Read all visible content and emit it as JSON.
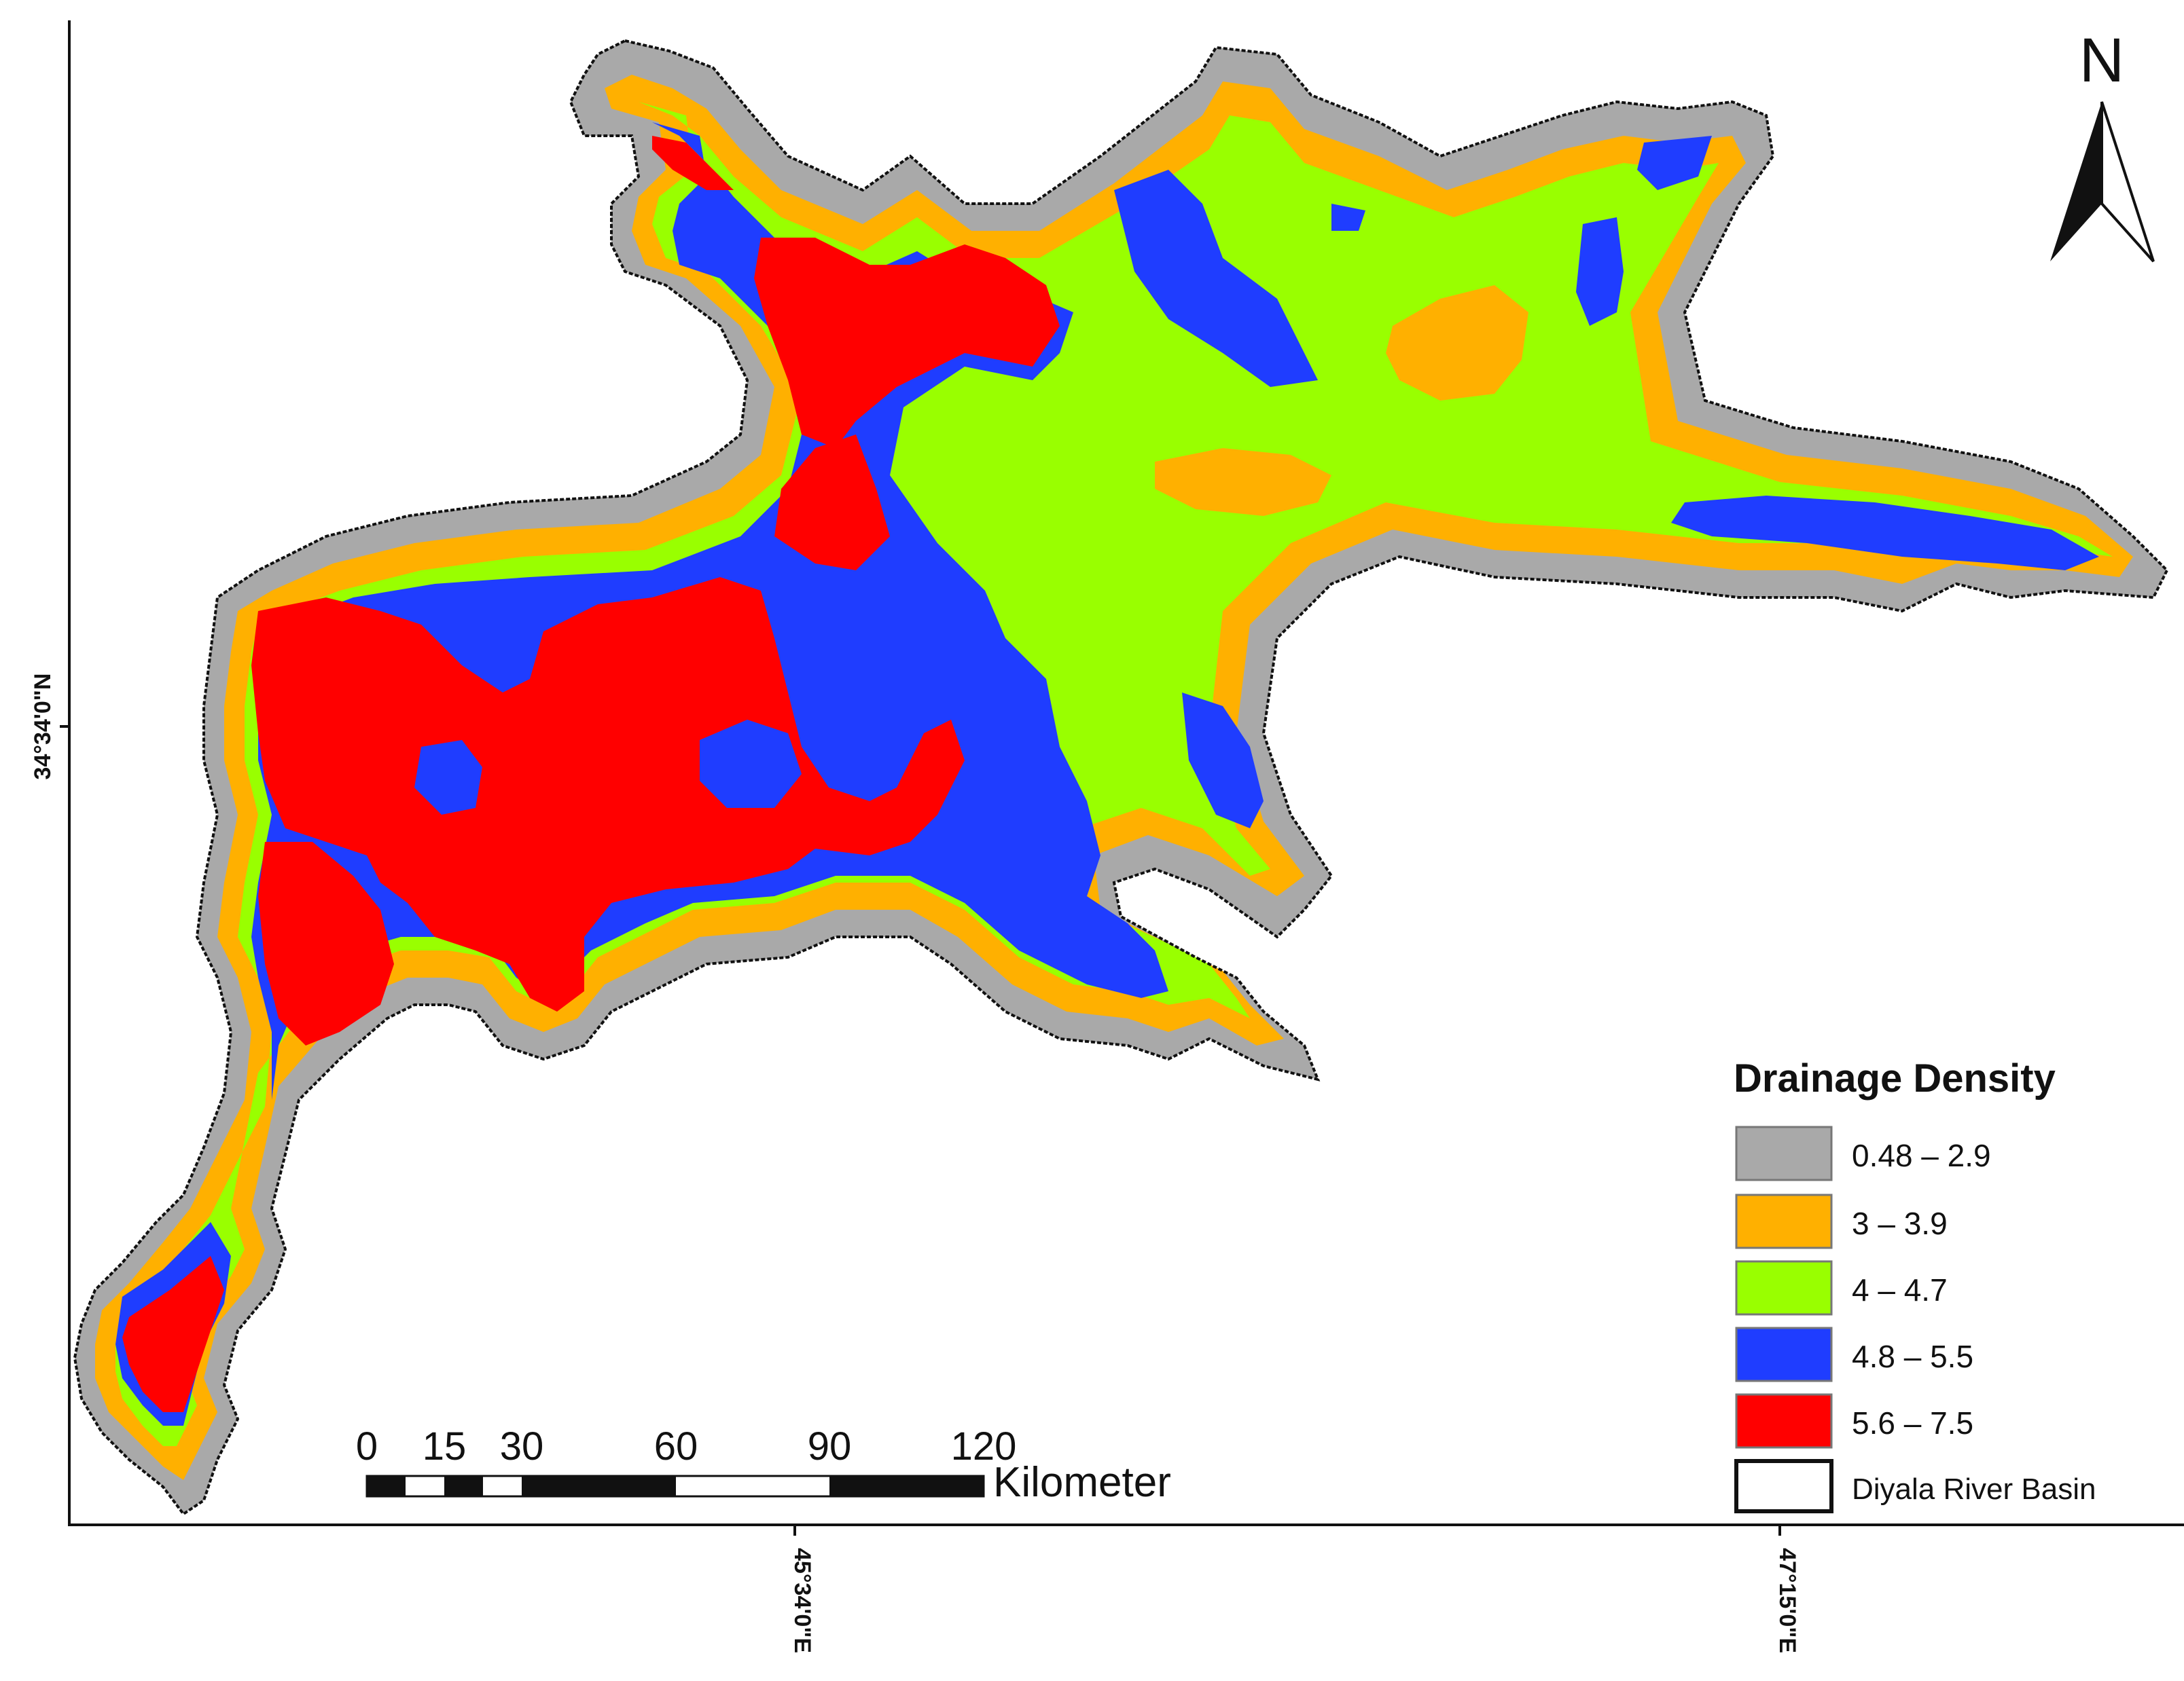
{
  "map": {
    "frame_axes": {
      "latitude_label": "34°34'0\"N",
      "longitude_labels": [
        "45°34'0\"E",
        "47°15'0\"E"
      ]
    },
    "north_arrow": {
      "letter": "N"
    },
    "scale_bar": {
      "tick_labels": [
        "0",
        "15",
        "30",
        "60",
        "90",
        "120"
      ],
      "unit": "Kilometer"
    },
    "legend": {
      "title": "Drainage Density",
      "classes": [
        {
          "label": "0.48 – 2.9",
          "color": "#a9a9a9"
        },
        {
          "label": "3 – 3.9",
          "color": "#ffb000"
        },
        {
          "label": "4 – 4.7",
          "color": "#99ff00"
        },
        {
          "label": "4.8 – 5.5",
          "color": "#1f3dff"
        },
        {
          "label": "5.6 – 7.5",
          "color": "#ff0000"
        },
        {
          "label": "Diyala River Basin",
          "color": "#ffffff"
        }
      ]
    }
  }
}
